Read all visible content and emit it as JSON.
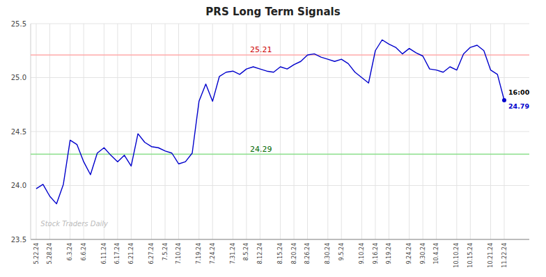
{
  "chart_data": {
    "type": "line",
    "title": "PRS Long Term Signals",
    "categories": [
      "5.22.24",
      null,
      "5.28.24",
      null,
      null,
      "6.3.24",
      null,
      "6.6.24",
      null,
      null,
      "6.11.24",
      null,
      "6.17.24",
      null,
      "6.21.24",
      null,
      null,
      "6.27.24",
      null,
      "7.5.24",
      null,
      "7.10.24",
      null,
      null,
      "7.19.24",
      null,
      "7.24.24",
      null,
      null,
      "7.31.24",
      null,
      "8.5.24",
      null,
      "8.12.24",
      null,
      null,
      "8.15.24",
      null,
      "8.20.24",
      null,
      "8.26.24",
      null,
      null,
      "8.30.24",
      null,
      "9.5.24",
      null,
      null,
      "9.10.24",
      null,
      "9.16.24",
      null,
      "9.19.24",
      null,
      null,
      "9.24.24",
      null,
      "9.30.24",
      null,
      "10.4.24",
      null,
      null,
      "10.10.24",
      null,
      "10.15.24",
      null,
      null,
      "10.21.24",
      null,
      "11.22.24"
    ],
    "values": [
      23.97,
      24.01,
      23.9,
      23.83,
      24.01,
      24.42,
      24.38,
      24.22,
      24.1,
      24.3,
      24.35,
      24.28,
      24.22,
      24.28,
      24.18,
      24.48,
      24.4,
      24.36,
      24.35,
      24.32,
      24.3,
      24.2,
      24.22,
      24.3,
      24.78,
      24.94,
      24.78,
      25.01,
      25.05,
      25.06,
      25.03,
      25.08,
      25.1,
      25.08,
      25.06,
      25.05,
      25.1,
      25.08,
      25.12,
      25.15,
      25.21,
      25.22,
      25.19,
      25.17,
      25.15,
      25.17,
      25.13,
      25.05,
      25.0,
      24.95,
      25.25,
      25.35,
      25.31,
      25.28,
      25.22,
      25.27,
      25.23,
      25.2,
      25.08,
      25.07,
      25.05,
      25.1,
      25.07,
      25.22,
      25.28,
      25.3,
      25.25,
      25.07,
      25.03,
      24.79
    ],
    "color": "#0000cc",
    "reference_lines": [
      {
        "value": 25.21,
        "label": "25.21",
        "color": "#ffaaaa",
        "label_color": "#cc0000"
      },
      {
        "value": 24.29,
        "label": "24.29",
        "color": "#88dd88",
        "label_color": "#006600"
      }
    ],
    "annotations": [
      {
        "text": "16:00",
        "color": "#000000"
      },
      {
        "text": "24.79",
        "color": "#0000cc"
      }
    ],
    "watermark": "Stock Traders Daily",
    "ylim": [
      23.5,
      25.5
    ],
    "yticks": [
      23.5,
      {
        "value": 24.0,
        "label": "24.0"
      },
      24.5,
      {
        "value": 25.0,
        "label": "25.0"
      },
      25.5
    ],
    "grid": true
  }
}
